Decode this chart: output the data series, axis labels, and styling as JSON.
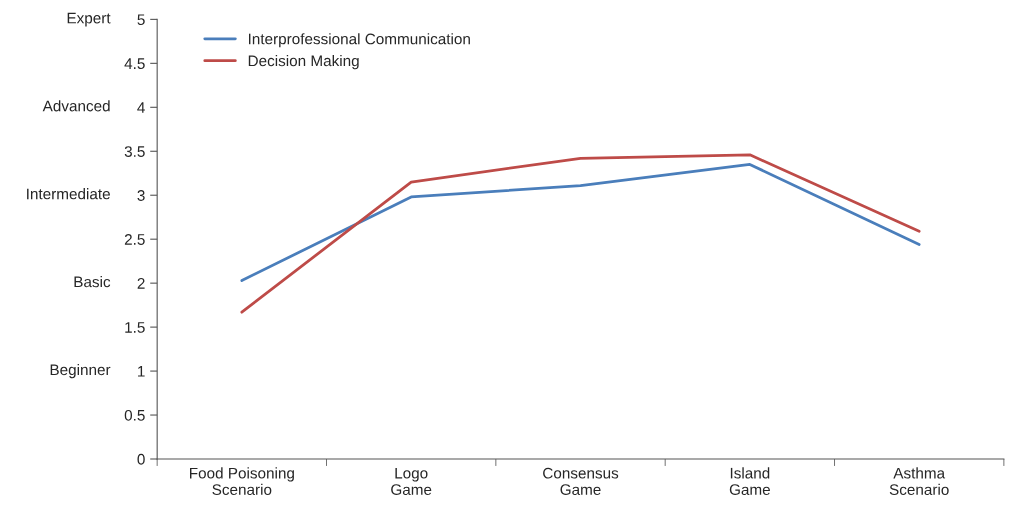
{
  "chart_data": {
    "type": "line",
    "categories": [
      "Food Poisoning\nScenario",
      "Logo\nGame",
      "Consensus\nGame",
      "Island\nGame",
      "Asthma\nScenario"
    ],
    "series": [
      {
        "name": "Interprofessional Communication",
        "color": "#4a7ebb",
        "values": [
          2.03,
          2.98,
          3.11,
          3.35,
          2.44
        ]
      },
      {
        "name": "Decision Making",
        "color": "#be4b48",
        "values": [
          1.67,
          3.15,
          3.42,
          3.46,
          2.59
        ]
      }
    ],
    "ylim": [
      0,
      5
    ],
    "yticks": [
      0,
      0.5,
      1,
      1.5,
      2,
      2.5,
      3,
      3.5,
      4,
      4.5,
      5
    ],
    "annotations": [
      "Beginner",
      "Basic",
      "Intermediate",
      "Advanced",
      "Expert"
    ],
    "legend": "top left",
    "grid": false,
    "marker": "none",
    "line_style": "solid"
  }
}
